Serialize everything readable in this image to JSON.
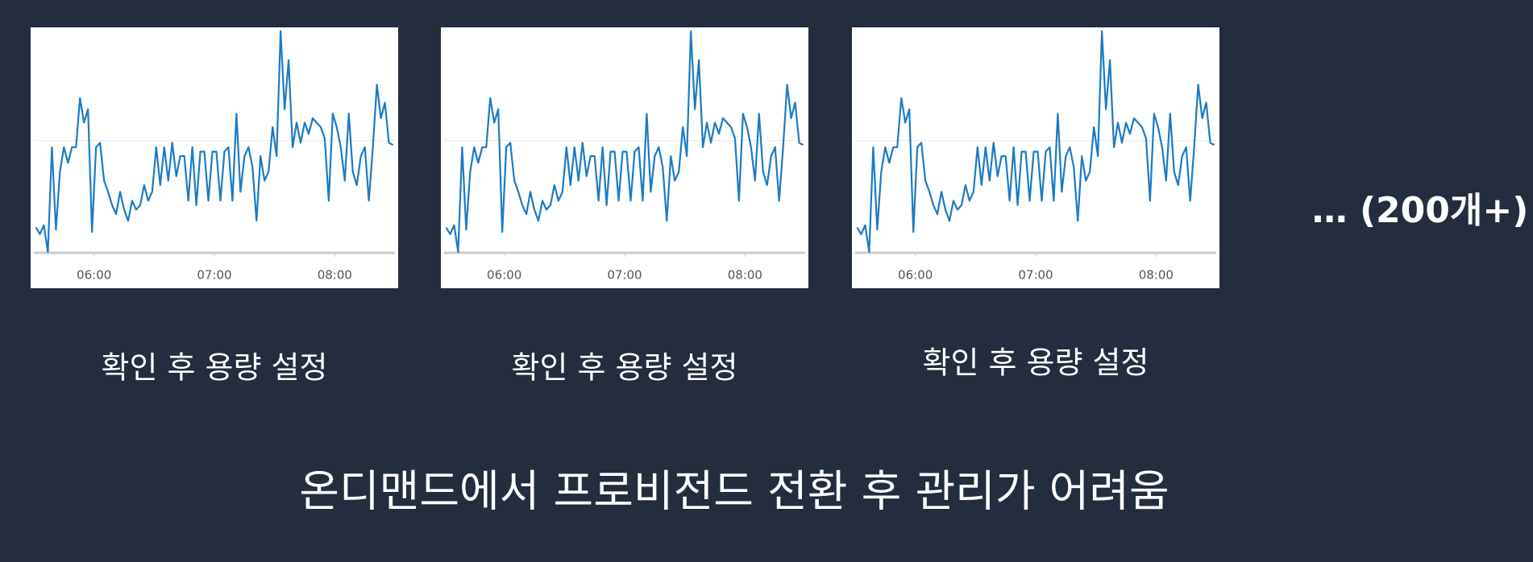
{
  "note": "… (200개+)",
  "headline": "온디맨드에서 프로비전드 전환 후 관리가 어려움",
  "chart_data": [
    {
      "type": "line",
      "caption": "확인 후 용량 설정",
      "color": "#1b7bc4",
      "xlim": [
        "05:30",
        "08:30"
      ],
      "xticks": [
        "06:00",
        "07:00",
        "08:00"
      ],
      "ylim": [
        0,
        100
      ],
      "grid_lines": [
        50
      ],
      "x": [
        "05:31",
        "05:33",
        "05:35",
        "05:37",
        "05:39",
        "05:41",
        "05:43",
        "05:45",
        "05:47",
        "05:49",
        "05:51",
        "05:53",
        "05:55",
        "05:57",
        "05:59",
        "06:01",
        "06:03",
        "06:05",
        "06:07",
        "06:09",
        "06:11",
        "06:13",
        "06:15",
        "06:17",
        "06:19",
        "06:21",
        "06:23",
        "06:25",
        "06:27",
        "06:29",
        "06:31",
        "06:33",
        "06:35",
        "06:37",
        "06:39",
        "06:41",
        "06:43",
        "06:45",
        "06:47",
        "06:49",
        "06:51",
        "06:53",
        "06:55",
        "06:57",
        "06:59",
        "07:01",
        "07:03",
        "07:05",
        "07:07",
        "07:09",
        "07:11",
        "07:13",
        "07:15",
        "07:17",
        "07:19",
        "07:21",
        "07:23",
        "07:25",
        "07:27",
        "07:29",
        "07:31",
        "07:33",
        "07:35",
        "07:37",
        "07:39",
        "07:41",
        "07:43",
        "07:45",
        "07:47",
        "07:49",
        "07:51",
        "07:53",
        "07:55",
        "07:57",
        "07:59",
        "08:01",
        "08:03",
        "08:05",
        "08:07",
        "08:09",
        "08:11",
        "08:13",
        "08:15",
        "08:17",
        "08:19",
        "08:21",
        "08:23",
        "08:25",
        "08:27",
        "08:29"
      ],
      "values": [
        11,
        8,
        12,
        0,
        47,
        10,
        36,
        47,
        40,
        47,
        47,
        69,
        58,
        64,
        9,
        47,
        49,
        32,
        27,
        21,
        17,
        27,
        19,
        14,
        23,
        19,
        21,
        30,
        23,
        27,
        47,
        30,
        47,
        32,
        49,
        34,
        43,
        43,
        23,
        47,
        21,
        45,
        45,
        23,
        45,
        45,
        23,
        45,
        47,
        23,
        62,
        27,
        43,
        47,
        38,
        14,
        43,
        32,
        36,
        56,
        43,
        99,
        64,
        86,
        47,
        58,
        49,
        58,
        53,
        60,
        58,
        56,
        51,
        23,
        62,
        56,
        47,
        32,
        62,
        36,
        30,
        43,
        47,
        23,
        47,
        75,
        60,
        67,
        49,
        48
      ]
    },
    {
      "type": "line",
      "caption": "확인 후 용량 설정",
      "color": "#1b7bc4",
      "xlim": [
        "05:30",
        "08:30"
      ],
      "xticks": [
        "06:00",
        "07:00",
        "08:00"
      ],
      "ylim": [
        0,
        100
      ],
      "grid_lines": [
        50
      ],
      "x": [
        "05:31",
        "05:33",
        "05:35",
        "05:37",
        "05:39",
        "05:41",
        "05:43",
        "05:45",
        "05:47",
        "05:49",
        "05:51",
        "05:53",
        "05:55",
        "05:57",
        "05:59",
        "06:01",
        "06:03",
        "06:05",
        "06:07",
        "06:09",
        "06:11",
        "06:13",
        "06:15",
        "06:17",
        "06:19",
        "06:21",
        "06:23",
        "06:25",
        "06:27",
        "06:29",
        "06:31",
        "06:33",
        "06:35",
        "06:37",
        "06:39",
        "06:41",
        "06:43",
        "06:45",
        "06:47",
        "06:49",
        "06:51",
        "06:53",
        "06:55",
        "06:57",
        "06:59",
        "07:01",
        "07:03",
        "07:05",
        "07:07",
        "07:09",
        "07:11",
        "07:13",
        "07:15",
        "07:17",
        "07:19",
        "07:21",
        "07:23",
        "07:25",
        "07:27",
        "07:29",
        "07:31",
        "07:33",
        "07:35",
        "07:37",
        "07:39",
        "07:41",
        "07:43",
        "07:45",
        "07:47",
        "07:49",
        "07:51",
        "07:53",
        "07:55",
        "07:57",
        "07:59",
        "08:01",
        "08:03",
        "08:05",
        "08:07",
        "08:09",
        "08:11",
        "08:13",
        "08:15",
        "08:17",
        "08:19",
        "08:21",
        "08:23",
        "08:25",
        "08:27",
        "08:29"
      ],
      "values": [
        11,
        8,
        12,
        0,
        47,
        10,
        36,
        47,
        40,
        47,
        47,
        69,
        58,
        64,
        9,
        47,
        49,
        32,
        27,
        21,
        17,
        27,
        19,
        14,
        23,
        19,
        21,
        30,
        23,
        27,
        47,
        30,
        47,
        32,
        49,
        34,
        43,
        43,
        23,
        47,
        21,
        45,
        45,
        23,
        45,
        45,
        23,
        45,
        47,
        23,
        62,
        27,
        43,
        47,
        38,
        14,
        43,
        32,
        36,
        56,
        43,
        99,
        64,
        86,
        47,
        58,
        49,
        58,
        53,
        60,
        58,
        56,
        51,
        23,
        62,
        56,
        47,
        32,
        62,
        36,
        30,
        43,
        47,
        23,
        47,
        75,
        60,
        67,
        49,
        48
      ]
    },
    {
      "type": "line",
      "caption": "확인 후 용량 설정",
      "color": "#1b7bc4",
      "xlim": [
        "05:30",
        "08:30"
      ],
      "xticks": [
        "06:00",
        "07:00",
        "08:00"
      ],
      "ylim": [
        0,
        100
      ],
      "grid_lines": [
        50
      ],
      "x": [
        "05:31",
        "05:33",
        "05:35",
        "05:37",
        "05:39",
        "05:41",
        "05:43",
        "05:45",
        "05:47",
        "05:49",
        "05:51",
        "05:53",
        "05:55",
        "05:57",
        "05:59",
        "06:01",
        "06:03",
        "06:05",
        "06:07",
        "06:09",
        "06:11",
        "06:13",
        "06:15",
        "06:17",
        "06:19",
        "06:21",
        "06:23",
        "06:25",
        "06:27",
        "06:29",
        "06:31",
        "06:33",
        "06:35",
        "06:37",
        "06:39",
        "06:41",
        "06:43",
        "06:45",
        "06:47",
        "06:49",
        "06:51",
        "06:53",
        "06:55",
        "06:57",
        "06:59",
        "07:01",
        "07:03",
        "07:05",
        "07:07",
        "07:09",
        "07:11",
        "07:13",
        "07:15",
        "07:17",
        "07:19",
        "07:21",
        "07:23",
        "07:25",
        "07:27",
        "07:29",
        "07:31",
        "07:33",
        "07:35",
        "07:37",
        "07:39",
        "07:41",
        "07:43",
        "07:45",
        "07:47",
        "07:49",
        "07:51",
        "07:53",
        "07:55",
        "07:57",
        "07:59",
        "08:01",
        "08:03",
        "08:05",
        "08:07",
        "08:09",
        "08:11",
        "08:13",
        "08:15",
        "08:17",
        "08:19",
        "08:21",
        "08:23",
        "08:25",
        "08:27",
        "08:29"
      ],
      "values": [
        11,
        8,
        12,
        0,
        47,
        10,
        36,
        47,
        40,
        47,
        47,
        69,
        58,
        64,
        9,
        47,
        49,
        32,
        27,
        21,
        17,
        27,
        19,
        14,
        23,
        19,
        21,
        30,
        23,
        27,
        47,
        30,
        47,
        32,
        49,
        34,
        43,
        43,
        23,
        47,
        21,
        45,
        45,
        23,
        45,
        45,
        23,
        45,
        47,
        23,
        62,
        27,
        43,
        47,
        38,
        14,
        43,
        32,
        36,
        56,
        43,
        99,
        64,
        86,
        47,
        58,
        49,
        58,
        53,
        60,
        58,
        56,
        51,
        23,
        62,
        56,
        47,
        32,
        62,
        36,
        30,
        43,
        47,
        23,
        47,
        75,
        60,
        67,
        49,
        48
      ]
    }
  ]
}
